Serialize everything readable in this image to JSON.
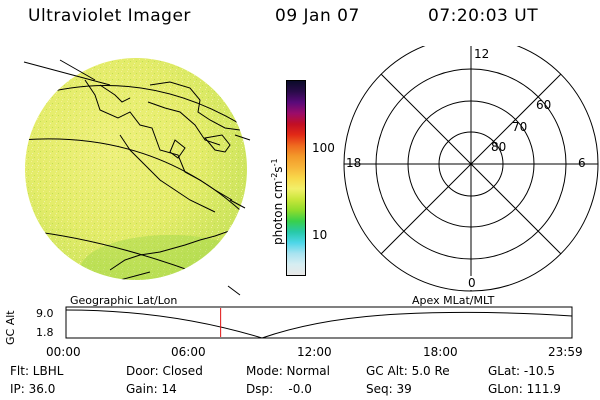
{
  "header": {
    "title": "Ultraviolet Imager",
    "date": "09 Jan 07",
    "time": "07:20:03 UT"
  },
  "colorbar": {
    "unit_label": "photon cm-2s-1",
    "tick_100": "100",
    "tick_10": "10",
    "colors": [
      "#e8e8e8",
      "#d6eef2",
      "#a8e3f0",
      "#4dd6e8",
      "#27c9a8",
      "#39d04b",
      "#8fdc2c",
      "#c8e63a",
      "#f2f06a",
      "#f8d84a",
      "#f7b53a",
      "#f39a2a",
      "#ef6a1f",
      "#e22a16",
      "#c20f24",
      "#9b0c6a",
      "#5a0a7a",
      "#2a0b4a",
      "#0b0b2a"
    ]
  },
  "polar_plot": {
    "mlt_labels": {
      "top": "12",
      "left": "18",
      "right": "6",
      "bottom": "0"
    },
    "lat_labels": [
      "60",
      "70",
      "80"
    ]
  },
  "timeline": {
    "left_label": "Geographic Lat/Lon",
    "right_label": "Apex MLat/MLT",
    "ylabel": "GC Alt",
    "ymax": "9.0",
    "ymin": "1.8",
    "ticks": [
      "00:00",
      "06:00",
      "12:00",
      "18:00",
      "23:59"
    ],
    "current_time_fraction": 0.3056
  },
  "footer": {
    "filter": "Flt: LBHL",
    "ip": "IP: 36.0",
    "door": "Door: Closed",
    "gain": "Gain: 14",
    "mode": "Mode: Normal",
    "dsp": "Dsp:    -0.0",
    "gc_alt": "GC Alt: 5.0 Re",
    "seq": "Seq: 39",
    "glat": "GLat: -10.5",
    "glon": "GLon: 111.9"
  }
}
